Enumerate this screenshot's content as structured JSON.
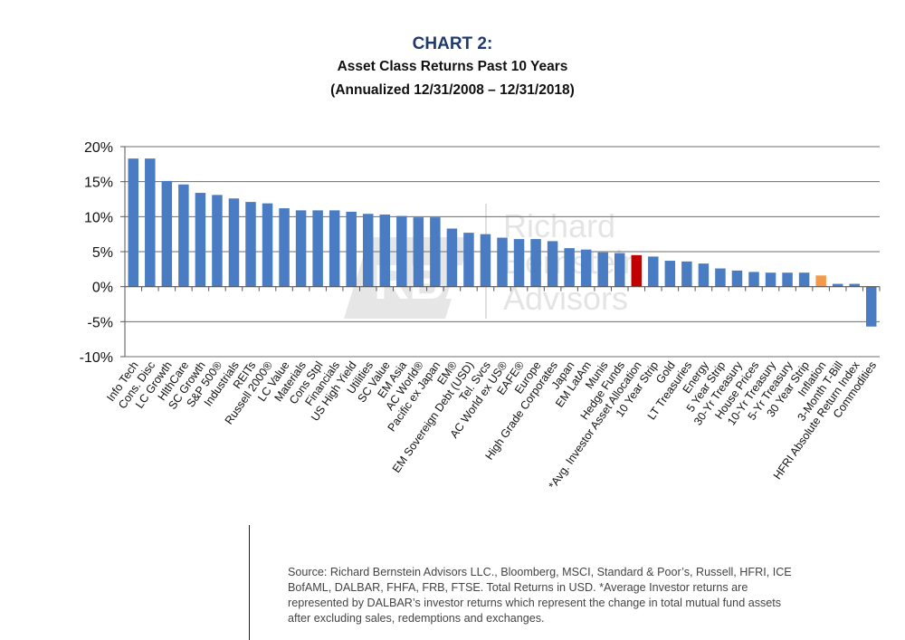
{
  "header": {
    "title": "CHART 2:",
    "subtitle_line1": "Asset Class Returns Past 10 Years",
    "subtitle_line2": "(Annualized 12/31/2008 – 12/31/2018)"
  },
  "watermark": {
    "text_line1": "Richard",
    "text_line2": "Bernstein",
    "text_line3": "Advisors"
  },
  "source_note": "Source: Richard Bernstein Advisors LLC., Bloomberg, MSCI, Standard & Poor’s, Russell, HFRI, ICE BofAML, DALBAR, FHFA, FRB, FTSE.  Total Returns in USD. *Average Investor returns are represented by DALBAR’s investor returns which represent the change in total mutual fund assets after excluding sales, redemptions and exchanges.",
  "chart_data": {
    "type": "bar",
    "title": "",
    "xlabel": "",
    "ylabel": "",
    "ylim": [
      -10,
      20
    ],
    "yticks": [
      20,
      15,
      10,
      5,
      0,
      -5,
      -10
    ],
    "ytick_labels": [
      "20%",
      "15%",
      "10%",
      "5%",
      "0%",
      "-5%",
      "-10%"
    ],
    "grid": true,
    "legend": "none",
    "colors": {
      "default": "#4a7cc4",
      "highlight_investor": "#c00000",
      "highlight_inflation": "#f39a4a"
    },
    "categories": [
      "Info Tech",
      "Cons. Disc",
      "LC Growth",
      "HlthCare",
      "SC Growth",
      "S&P 500®",
      "Industrials",
      "REITs",
      "Russell 2000®",
      "LC Value",
      "Materials",
      "Cons Stpl",
      "Financials",
      "US High Yield",
      "Utilities",
      "SC Value",
      "EM Asia",
      "AC World®",
      "Pacific ex Japan",
      "EM®",
      "EM Sovereign Debt (USD)",
      "Tel. Svcs",
      "AC World ex US®",
      "EAFE®",
      "Europe",
      "High Grade Corporates",
      "Japan",
      "EM LatAm",
      "Munis",
      "Hedge Funds",
      "*Avg. Investor Asset Allocation",
      "10 Year Strip",
      "Gold",
      "LT Treasuries",
      "Energy",
      "5 Year Strip",
      "30-Yr Treasury",
      "House Prices",
      "10-Yr Treasury",
      "5-Yr Treasury",
      "30 Year Strip",
      "Inflation",
      "3-Month T-Bill",
      "HFRI Absolute Return Index",
      "Commodities"
    ],
    "values": [
      18.3,
      18.3,
      15.1,
      14.6,
      13.4,
      13.1,
      12.6,
      12.1,
      11.9,
      11.2,
      10.9,
      10.9,
      10.9,
      10.7,
      10.4,
      10.3,
      10.1,
      9.9,
      9.9,
      8.3,
      7.7,
      7.5,
      7.0,
      6.8,
      6.8,
      6.5,
      5.5,
      5.3,
      4.9,
      4.8,
      4.5,
      4.3,
      3.7,
      3.6,
      3.3,
      2.6,
      2.3,
      2.1,
      2.0,
      2.0,
      2.0,
      1.6,
      0.4,
      0.4,
      -5.7
    ],
    "highlight": {
      "*Avg. Investor Asset Allocation": "highlight_investor",
      "Inflation": "highlight_inflation"
    }
  }
}
